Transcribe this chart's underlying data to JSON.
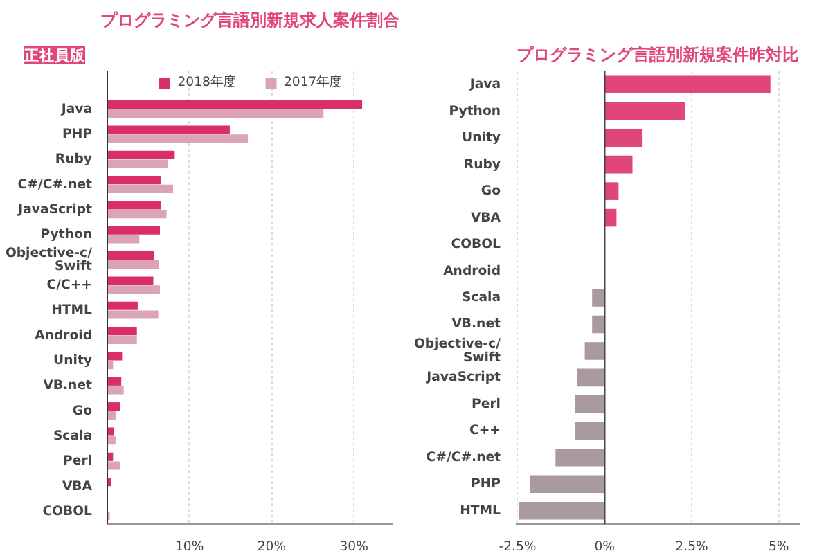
{
  "chart_data": [
    {
      "type": "bar",
      "orientation": "horizontal",
      "title": "プログラミング言語別新規求人案件割合",
      "annotations": [
        "正社員版"
      ],
      "categories": [
        "Java",
        "PHP",
        "Ruby",
        "C#/C#.net",
        "JavaScript",
        "Python",
        "Objective-c/Swift",
        "C/C++",
        "HTML",
        "Android",
        "Unity",
        "VB.net",
        "Go",
        "Scala",
        "Perl",
        "VBA",
        "COBOL"
      ],
      "series": [
        {
          "name": "2018年度",
          "color": "#d92f66",
          "values": [
            31.0,
            14.9,
            8.2,
            6.5,
            6.5,
            6.4,
            5.7,
            5.6,
            3.7,
            3.6,
            1.8,
            1.7,
            1.6,
            0.8,
            0.7,
            0.5,
            null
          ]
        },
        {
          "name": "2017年度",
          "color": "#dba3b8",
          "values": [
            26.3,
            17.1,
            7.4,
            8.0,
            7.2,
            3.9,
            6.3,
            6.4,
            6.2,
            3.6,
            0.7,
            2.0,
            1.0,
            1.0,
            1.6,
            null,
            0.3
          ]
        }
      ],
      "xlim": [
        0,
        34.7
      ],
      "xticks": [
        {
          "value": 10,
          "label": "10%"
        },
        {
          "value": 20,
          "label": "20%"
        },
        {
          "value": 30,
          "label": "30%"
        }
      ],
      "grid": "x",
      "legend": "top"
    },
    {
      "type": "bar",
      "orientation": "horizontal",
      "title": "プログラミング言語別新規案件昨対比",
      "categories": [
        "Java",
        "Python",
        "Unity",
        "Ruby",
        "Go",
        "VBA",
        "COBOL",
        "Android",
        "Scala",
        "VB.net",
        "Objective-c/Swift",
        "JavaScript",
        "Perl",
        "C++",
        "C#/C#.net",
        "PHP",
        "HTML"
      ],
      "values": [
        4.76,
        2.32,
        1.07,
        0.8,
        0.4,
        0.34,
        null,
        null,
        -0.36,
        -0.36,
        -0.57,
        -0.8,
        -0.86,
        -0.86,
        -1.41,
        -2.14,
        -2.45
      ],
      "colors": [
        "#e0457b",
        "#e0457b",
        "#e0457b",
        "#e0457b",
        "#e0457b",
        "#e0457b",
        "#e0457b",
        "#a89a9e",
        "#a89a9e",
        "#a89a9e",
        "#a89a9e",
        "#a89a9e",
        "#a89a9e",
        "#a89a9e",
        "#a89a9e",
        "#a89a9e",
        "#a89a9e"
      ],
      "xlim": [
        -2.55,
        5.6
      ],
      "xticks": [
        {
          "value": -2.5,
          "label": "-2.5%"
        },
        {
          "value": 0,
          "label": "0%"
        },
        {
          "value": 2.5,
          "label": "2.5%"
        },
        {
          "value": 5,
          "label": "5%"
        }
      ],
      "grid": "x",
      "ref_lines": [
        {
          "axis": "x",
          "value": 0
        }
      ]
    }
  ]
}
